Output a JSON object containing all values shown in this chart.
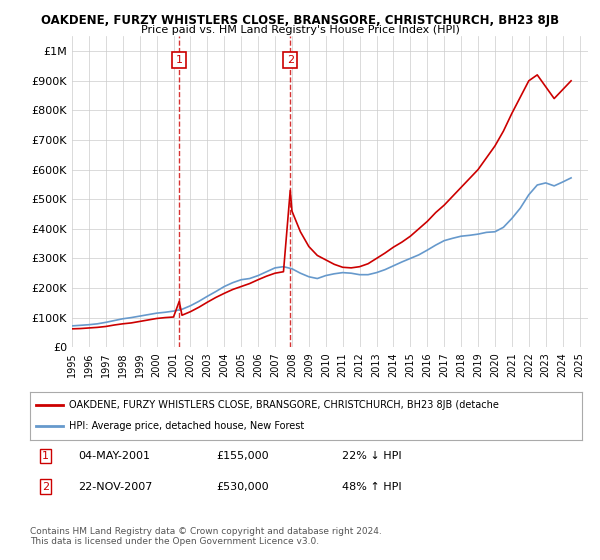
{
  "title": "OAKDENE, FURZY WHISTLERS CLOSE, BRANSGORE, CHRISTCHURCH, BH23 8JB",
  "subtitle": "Price paid vs. HM Land Registry's House Price Index (HPI)",
  "xlabel": "",
  "ylabel": "",
  "ylim": [
    0,
    1050000
  ],
  "xlim_start": 1995.0,
  "xlim_end": 2025.5,
  "yticks": [
    0,
    100000,
    200000,
    300000,
    400000,
    500000,
    600000,
    700000,
    800000,
    900000,
    1000000
  ],
  "ytick_labels": [
    "£0",
    "£100K",
    "£200K",
    "£300K",
    "£400K",
    "£500K",
    "£600K",
    "£700K",
    "£800K",
    "£900K",
    "£1M"
  ],
  "xticks": [
    1995,
    1996,
    1997,
    1998,
    1999,
    2000,
    2001,
    2002,
    2003,
    2004,
    2005,
    2006,
    2007,
    2008,
    2009,
    2010,
    2011,
    2012,
    2013,
    2014,
    2015,
    2016,
    2017,
    2018,
    2019,
    2020,
    2021,
    2022,
    2023,
    2024,
    2025
  ],
  "sale1_x": 2001.34,
  "sale1_y": 155000,
  "sale1_label": "1",
  "sale1_date": "04-MAY-2001",
  "sale1_price": "£155,000",
  "sale1_hpi": "22% ↓ HPI",
  "sale2_x": 2007.9,
  "sale2_y": 530000,
  "sale2_label": "2",
  "sale2_date": "22-NOV-2007",
  "sale2_price": "£530,000",
  "sale2_hpi": "48% ↑ HPI",
  "red_line_color": "#cc0000",
  "blue_line_color": "#6699cc",
  "marker_box_color": "#cc0000",
  "vline_color": "#cc0000",
  "grid_color": "#cccccc",
  "background_color": "#ffffff",
  "legend_line1": "OAKDENE, FURZY WHISTLERS CLOSE, BRANSGORE, CHRISTCHURCH, BH23 8JB (detache",
  "legend_line2": "HPI: Average price, detached house, New Forest",
  "footnote": "Contains HM Land Registry data © Crown copyright and database right 2024.\nThis data is licensed under the Open Government Licence v3.0.",
  "hpi_years": [
    1995.0,
    1995.5,
    1996.0,
    1996.5,
    1997.0,
    1997.5,
    1998.0,
    1998.5,
    1999.0,
    1999.5,
    2000.0,
    2000.5,
    2001.0,
    2001.5,
    2002.0,
    2002.5,
    2003.0,
    2003.5,
    2004.0,
    2004.5,
    2005.0,
    2005.5,
    2006.0,
    2006.5,
    2007.0,
    2007.5,
    2008.0,
    2008.5,
    2009.0,
    2009.5,
    2010.0,
    2010.5,
    2011.0,
    2011.5,
    2012.0,
    2012.5,
    2013.0,
    2013.5,
    2014.0,
    2014.5,
    2015.0,
    2015.5,
    2016.0,
    2016.5,
    2017.0,
    2017.5,
    2018.0,
    2018.5,
    2019.0,
    2019.5,
    2020.0,
    2020.5,
    2021.0,
    2021.5,
    2022.0,
    2022.5,
    2023.0,
    2023.5,
    2024.0,
    2024.5
  ],
  "hpi_values": [
    72000,
    74000,
    76000,
    79000,
    84000,
    90000,
    96000,
    100000,
    105000,
    110000,
    115000,
    118000,
    122000,
    128000,
    140000,
    155000,
    172000,
    188000,
    205000,
    218000,
    228000,
    232000,
    242000,
    255000,
    268000,
    272000,
    265000,
    250000,
    238000,
    232000,
    242000,
    248000,
    252000,
    250000,
    245000,
    245000,
    252000,
    262000,
    275000,
    288000,
    300000,
    312000,
    328000,
    345000,
    360000,
    368000,
    375000,
    378000,
    382000,
    388000,
    390000,
    405000,
    435000,
    470000,
    515000,
    548000,
    555000,
    545000,
    558000,
    572000
  ],
  "red_years": [
    1995.0,
    1995.5,
    1996.0,
    1996.5,
    1997.0,
    1997.5,
    1998.0,
    1998.5,
    1999.0,
    1999.5,
    2000.0,
    2000.5,
    2001.0,
    2001.34,
    2001.5,
    2002.0,
    2002.5,
    2003.0,
    2003.5,
    2004.0,
    2004.5,
    2005.0,
    2005.5,
    2006.0,
    2006.5,
    2007.0,
    2007.5,
    2007.9,
    2008.0,
    2008.5,
    2009.0,
    2009.5,
    2010.0,
    2010.5,
    2011.0,
    2011.5,
    2012.0,
    2012.5,
    2013.0,
    2013.5,
    2014.0,
    2014.5,
    2015.0,
    2015.5,
    2016.0,
    2016.5,
    2017.0,
    2017.5,
    2018.0,
    2018.5,
    2019.0,
    2019.5,
    2020.0,
    2020.5,
    2021.0,
    2021.5,
    2022.0,
    2022.5,
    2023.0,
    2023.5,
    2024.0,
    2024.5
  ],
  "red_values": [
    62000,
    63000,
    65000,
    67000,
    70000,
    75000,
    79000,
    82000,
    87000,
    92000,
    97000,
    100000,
    102000,
    155000,
    108000,
    120000,
    135000,
    152000,
    168000,
    182000,
    195000,
    205000,
    215000,
    228000,
    240000,
    250000,
    255000,
    530000,
    460000,
    390000,
    340000,
    310000,
    295000,
    280000,
    270000,
    268000,
    272000,
    282000,
    300000,
    318000,
    338000,
    355000,
    375000,
    400000,
    425000,
    455000,
    480000,
    510000,
    540000,
    570000,
    600000,
    640000,
    680000,
    730000,
    790000,
    845000,
    900000,
    920000,
    880000,
    840000,
    870000,
    900000
  ]
}
